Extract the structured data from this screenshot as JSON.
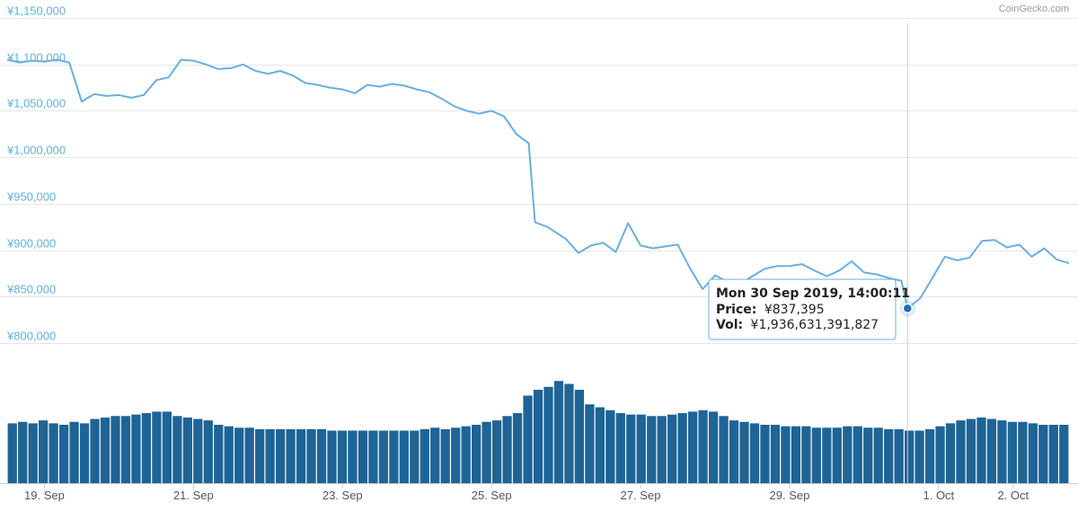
{
  "credit": "CoinGecko.com",
  "colors": {
    "price_line": "#6aaee0",
    "volume_bar": "#1e6496",
    "grid": "#e6e6e6",
    "y_label": "#5fb0dd",
    "marker": "#1f6fb5"
  },
  "tooltip": {
    "date": "Mon 30 Sep 2019, 14:00:11",
    "price_label": "Price:",
    "price_value": "¥837,395",
    "vol_label": "Vol:",
    "vol_value": "¥1,936,631,391,827"
  },
  "chart_data": {
    "type": "line",
    "title": "",
    "xlabel": "",
    "ylabel": "",
    "grid": true,
    "x_ticks": [
      "19. Sep",
      "21. Sep",
      "23. Sep",
      "25. Sep",
      "27. Sep",
      "29. Sep",
      "1. Oct",
      "2. Oct"
    ],
    "y_ticks": [
      "¥800,000",
      "¥850,000",
      "¥900,000",
      "¥950,000",
      "¥1,000,000",
      "¥1,050,000",
      "¥1,100,000",
      "¥1,150,000"
    ],
    "ylim": [
      800000,
      1150000
    ],
    "x_range": [
      "2019-09-18 12:00",
      "2019-10-02 18:00"
    ],
    "crosshair_time": "2019-09-30 14:00",
    "series": [
      {
        "points": [
          [
            "2019-09-18 12:00",
            1105000
          ],
          [
            "2019-09-18 16:00",
            1102000
          ],
          [
            "2019-09-18 20:00",
            1104000
          ],
          [
            "2019-09-19 00:00",
            1103000
          ],
          [
            "2019-09-19 04:00",
            1105000
          ],
          [
            "2019-09-19 08:00",
            1102000
          ],
          [
            "2019-09-19 12:00",
            1060000
          ],
          [
            "2019-09-19 16:00",
            1068000
          ],
          [
            "2019-09-19 20:00",
            1066000
          ],
          [
            "2019-09-20 00:00",
            1067000
          ],
          [
            "2019-09-20 04:00",
            1064000
          ],
          [
            "2019-09-20 08:00",
            1067000
          ],
          [
            "2019-09-20 12:00",
            1083000
          ],
          [
            "2019-09-20 16:00",
            1086000
          ],
          [
            "2019-09-20 20:00",
            1105000
          ],
          [
            "2019-09-21 00:00",
            1104000
          ],
          [
            "2019-09-21 04:00",
            1100000
          ],
          [
            "2019-09-21 08:00",
            1095000
          ],
          [
            "2019-09-21 12:00",
            1096000
          ],
          [
            "2019-09-21 16:00",
            1100000
          ],
          [
            "2019-09-21 20:00",
            1093000
          ],
          [
            "2019-09-22 00:00",
            1090000
          ],
          [
            "2019-09-22 04:00",
            1093000
          ],
          [
            "2019-09-22 08:00",
            1088000
          ],
          [
            "2019-09-22 12:00",
            1080000
          ],
          [
            "2019-09-22 16:00",
            1078000
          ],
          [
            "2019-09-22 20:00",
            1075000
          ],
          [
            "2019-09-23 00:00",
            1073000
          ],
          [
            "2019-09-23 04:00",
            1069000
          ],
          [
            "2019-09-23 08:00",
            1078000
          ],
          [
            "2019-09-23 12:00",
            1076000
          ],
          [
            "2019-09-23 16:00",
            1079000
          ],
          [
            "2019-09-23 20:00",
            1077000
          ],
          [
            "2019-09-24 00:00",
            1073000
          ],
          [
            "2019-09-24 04:00",
            1070000
          ],
          [
            "2019-09-24 08:00",
            1063000
          ],
          [
            "2019-09-24 12:00",
            1055000
          ],
          [
            "2019-09-24 16:00",
            1050000
          ],
          [
            "2019-09-24 20:00",
            1047000
          ],
          [
            "2019-09-25 00:00",
            1050000
          ],
          [
            "2019-09-25 04:00",
            1044000
          ],
          [
            "2019-09-25 08:00",
            1025000
          ],
          [
            "2019-09-25 12:00",
            1015000
          ],
          [
            "2019-09-25 14:00",
            930000
          ],
          [
            "2019-09-25 18:00",
            925000
          ],
          [
            "2019-09-26 00:00",
            912000
          ],
          [
            "2019-09-26 04:00",
            897000
          ],
          [
            "2019-09-26 08:00",
            905000
          ],
          [
            "2019-09-26 12:00",
            908000
          ],
          [
            "2019-09-26 16:00",
            898000
          ],
          [
            "2019-09-26 20:00",
            929000
          ],
          [
            "2019-09-27 00:00",
            905000
          ],
          [
            "2019-09-27 04:00",
            902000
          ],
          [
            "2019-09-27 08:00",
            904000
          ],
          [
            "2019-09-27 12:00",
            906000
          ],
          [
            "2019-09-27 16:00",
            880000
          ],
          [
            "2019-09-27 20:00",
            858000
          ],
          [
            "2019-09-28 00:00",
            873000
          ],
          [
            "2019-09-28 04:00",
            866000
          ],
          [
            "2019-09-28 08:00",
            863000
          ],
          [
            "2019-09-28 12:00",
            872000
          ],
          [
            "2019-09-28 16:00",
            880000
          ],
          [
            "2019-09-28 20:00",
            883000
          ],
          [
            "2019-09-29 00:00",
            883000
          ],
          [
            "2019-09-29 04:00",
            885000
          ],
          [
            "2019-09-29 08:00",
            878000
          ],
          [
            "2019-09-29 12:00",
            872000
          ],
          [
            "2019-09-29 16:00",
            878000
          ],
          [
            "2019-09-29 20:00",
            888000
          ],
          [
            "2019-09-30 00:00",
            876000
          ],
          [
            "2019-09-30 04:00",
            874000
          ],
          [
            "2019-09-30 08:00",
            870000
          ],
          [
            "2019-09-30 12:00",
            867000
          ],
          [
            "2019-09-30 14:00",
            837395
          ],
          [
            "2019-09-30 18:00",
            848000
          ],
          [
            "2019-09-30 22:00",
            870000
          ],
          [
            "2019-10-01 02:00",
            893000
          ],
          [
            "2019-10-01 06:00",
            889000
          ],
          [
            "2019-10-01 10:00",
            892000
          ],
          [
            "2019-10-01 14:00",
            910000
          ],
          [
            "2019-10-01 18:00",
            911000
          ],
          [
            "2019-10-01 22:00",
            903000
          ],
          [
            "2019-10-02 02:00",
            906000
          ],
          [
            "2019-10-02 06:00",
            893000
          ],
          [
            "2019-10-02 10:00",
            902000
          ],
          [
            "2019-10-02 14:00",
            890000
          ],
          [
            "2019-10-02 18:00",
            886000
          ]
        ]
      }
    ],
    "volume": {
      "values": [
        2.05,
        2.1,
        2.05,
        2.15,
        2.05,
        2.0,
        2.1,
        2.05,
        2.2,
        2.25,
        2.3,
        2.3,
        2.35,
        2.4,
        2.45,
        2.45,
        2.3,
        2.25,
        2.2,
        2.15,
        2.0,
        1.95,
        1.9,
        1.9,
        1.85,
        1.85,
        1.85,
        1.85,
        1.85,
        1.85,
        1.85,
        1.8,
        1.8,
        1.8,
        1.8,
        1.8,
        1.8,
        1.8,
        1.8,
        1.8,
        1.85,
        1.9,
        1.85,
        1.9,
        1.95,
        2.0,
        2.1,
        2.15,
        2.3,
        2.4,
        3.0,
        3.2,
        3.3,
        3.5,
        3.4,
        3.2,
        2.7,
        2.6,
        2.5,
        2.4,
        2.35,
        2.35,
        2.3,
        2.3,
        2.35,
        2.4,
        2.45,
        2.5,
        2.45,
        2.3,
        2.15,
        2.1,
        2.05,
        2.0,
        2.0,
        1.95,
        1.95,
        1.95,
        1.9,
        1.9,
        1.9,
        1.95,
        1.95,
        1.9,
        1.9,
        1.85,
        1.85,
        1.8,
        1.8,
        1.85,
        1.95,
        2.05,
        2.15,
        2.2,
        2.25,
        2.2,
        2.15,
        2.1,
        2.1,
        2.05,
        2.0,
        2.0,
        2.0
      ]
    }
  }
}
